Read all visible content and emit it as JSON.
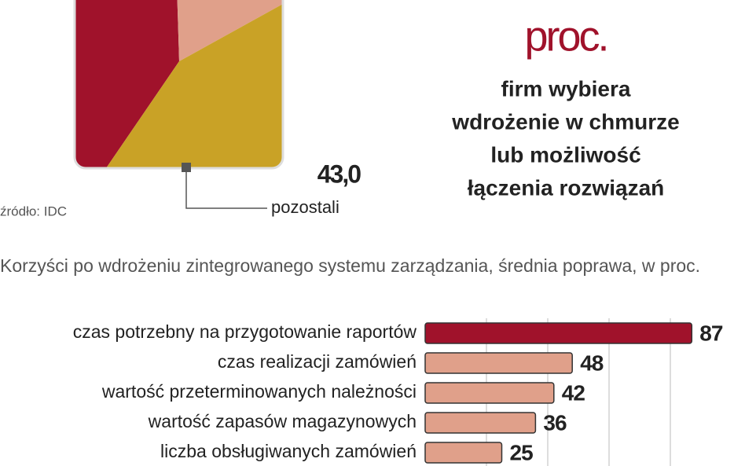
{
  "chart_data": [
    {
      "type": "pie",
      "categories": [
        "pozostali"
      ],
      "values": [
        43.0
      ],
      "value_labels": [
        "43,0"
      ],
      "color": "#c9a226",
      "annotations": [
        "proc.",
        "firm wybiera",
        "wdrożenie w chmurze",
        "lub możliwość",
        "łączenia rozwiązań"
      ],
      "source": "źródło: IDC"
    },
    {
      "type": "hbar",
      "title": "Korzyści po wdrożeniu zintegrowanego systemu zarządzania, średnia poprawa, w proc.",
      "categories": [
        "czas potrzebny na przygotowanie raportów",
        "czas realizacji zamówień",
        "wartość przeterminowanych należności",
        "wartość zapasów magazynowych",
        "liczba obsługiwanych zamówień"
      ],
      "values": [
        87,
        48,
        42,
        36,
        25
      ],
      "colors": [
        "#a0122b",
        "#e0a08a",
        "#e0a08a",
        "#e0a08a",
        "#e0a08a"
      ],
      "xlim": [
        0,
        100
      ],
      "xticks": [
        20,
        40,
        60,
        80
      ],
      "grid": true
    }
  ]
}
